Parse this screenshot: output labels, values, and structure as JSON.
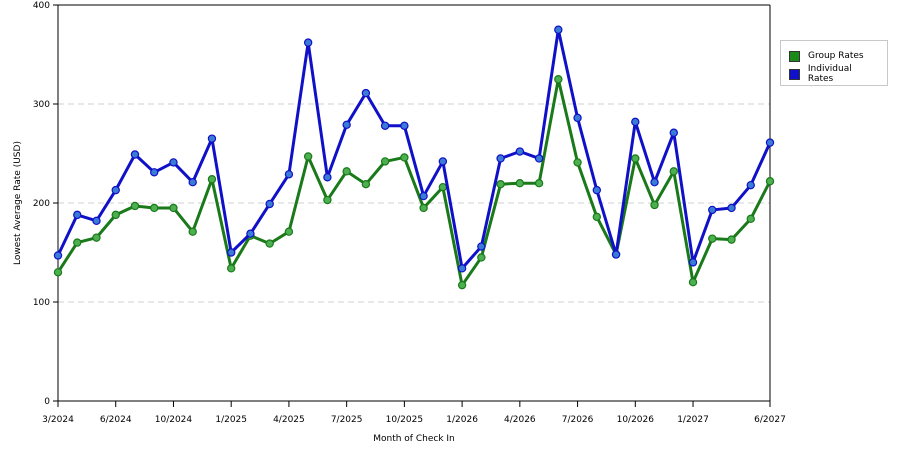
{
  "chart_data": {
    "type": "line",
    "title": "",
    "xlabel": "Month of Check In",
    "ylabel": "Lowest Average Rate (USD)",
    "ylim": [
      0,
      400
    ],
    "yticks": [
      0,
      100,
      200,
      300,
      400
    ],
    "grid": true,
    "legend_position": "right",
    "x_index_range": [
      0,
      37
    ],
    "xtick_labels": [
      {
        "index": 0,
        "label": "3/2024"
      },
      {
        "index": 3,
        "label": "6/2024"
      },
      {
        "index": 6,
        "label": "10/2024"
      },
      {
        "index": 9,
        "label": "1/2025"
      },
      {
        "index": 12,
        "label": "4/2025"
      },
      {
        "index": 15,
        "label": "7/2025"
      },
      {
        "index": 18,
        "label": "10/2025"
      },
      {
        "index": 21,
        "label": "1/2026"
      },
      {
        "index": 24,
        "label": "4/2026"
      },
      {
        "index": 27,
        "label": "7/2026"
      },
      {
        "index": 30,
        "label": "10/2026"
      },
      {
        "index": 33,
        "label": "1/2027"
      },
      {
        "index": 37,
        "label": "6/2027"
      }
    ],
    "series": [
      {
        "name": "Group Rates",
        "color": "#1a7a1a",
        "marker_color": "#4caf50",
        "values": [
          130,
          160,
          165,
          188,
          197,
          195,
          195,
          171,
          224,
          134,
          167,
          159,
          171,
          247,
          203,
          232,
          219,
          242,
          246,
          195,
          216,
          117,
          145,
          219,
          220,
          220,
          325,
          241,
          186,
          148,
          245,
          198,
          232,
          120,
          164,
          163,
          184,
          222
        ]
      },
      {
        "name": "Individual Rates",
        "color": "#1010c8",
        "marker_color": "#3a7bd5",
        "values": [
          147,
          188,
          182,
          213,
          249,
          231,
          241,
          221,
          265,
          150,
          169,
          199,
          229,
          362,
          226,
          279,
          311,
          278,
          278,
          207,
          242,
          134,
          156,
          245,
          252,
          245,
          375,
          286,
          213,
          148,
          282,
          221,
          271,
          140,
          193,
          195,
          218,
          261
        ]
      }
    ]
  }
}
